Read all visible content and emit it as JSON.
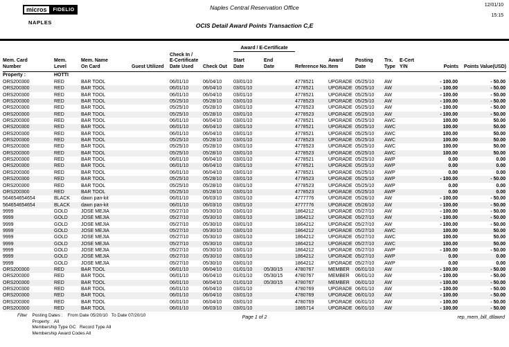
{
  "meta": {
    "print_date": "12/01/10",
    "print_time": "15:15"
  },
  "logo": {
    "micros": "micros",
    "fidelio": "FIDELIO",
    "property_name": "NAPLES"
  },
  "header": {
    "office": "Naples Central Reservation Office",
    "report_title": "OCIS Detail Award Points Transaction C,E"
  },
  "table": {
    "group_header": "Award / E-Certificate",
    "columns": [
      "Mem. Card\nNumber",
      "Mem.\nLevel",
      "Mem. Name\nOn Card",
      "Guest Utilized",
      "Check In /\nE-Certificate\nDate Used",
      "Check Out",
      "Start\nDate",
      "End\nDate",
      "Reference No.",
      "Award\nItem",
      "Posting\nDate",
      "Trx.\nType",
      "E-Cert\nY/N",
      "Points",
      "Points Value(USD)"
    ],
    "property_label": "Property :",
    "property_value": "HOTTI",
    "rows": [
      [
        "ORS200300",
        "RED",
        "BAR TOOL",
        "",
        "06/01/10",
        "06/04/10",
        "03/01/10",
        "",
        "4778521",
        "UPGRADE",
        "05/25/10",
        "AW",
        "",
        "- 100.00",
        "- 50.00"
      ],
      [
        "ORS200300",
        "RED",
        "BAR TOOL",
        "",
        "06/01/10",
        "06/04/10",
        "03/01/10",
        "",
        "4778521",
        "UPGRADE",
        "05/25/10",
        "AW",
        "",
        "- 100.00",
        "- 50.00"
      ],
      [
        "ORS200300",
        "RED",
        "BAR TOOL",
        "",
        "06/01/10",
        "06/04/10",
        "03/01/10",
        "",
        "4778521",
        "UPGRADE",
        "05/25/10",
        "AW",
        "",
        "- 100.00",
        "- 50.00"
      ],
      [
        "ORS200300",
        "RED",
        "BAR TOOL",
        "",
        "05/25/10",
        "05/28/10",
        "03/01/10",
        "",
        "4778523",
        "UPGRADE",
        "05/25/10",
        "AW",
        "",
        "- 100.00",
        "- 50.00"
      ],
      [
        "ORS200300",
        "RED",
        "BAR TOOL",
        "",
        "05/25/10",
        "05/28/10",
        "03/01/10",
        "",
        "4778523",
        "UPGRADE",
        "05/25/10",
        "AW",
        "",
        "- 100.00",
        "- 50.00"
      ],
      [
        "ORS200300",
        "RED",
        "BAR TOOL",
        "",
        "05/25/10",
        "05/28/10",
        "03/01/10",
        "",
        "4778523",
        "UPGRADE",
        "05/25/10",
        "AW",
        "",
        "- 100.00",
        "- 50.00"
      ],
      [
        "ORS200300",
        "RED",
        "BAR TOOL",
        "",
        "06/01/10",
        "06/04/10",
        "03/01/10",
        "",
        "4778521",
        "UPGRADE",
        "05/25/10",
        "AWC",
        "",
        "100.00",
        "50.00"
      ],
      [
        "ORS200300",
        "RED",
        "BAR TOOL",
        "",
        "06/01/10",
        "06/04/10",
        "03/01/10",
        "",
        "4778521",
        "UPGRADE",
        "05/25/10",
        "AWC",
        "",
        "100.00",
        "50.00"
      ],
      [
        "ORS200300",
        "RED",
        "BAR TOOL",
        "",
        "06/01/10",
        "06/04/10",
        "03/01/10",
        "",
        "4778521",
        "UPGRADE",
        "05/25/10",
        "AWC",
        "",
        "100.00",
        "50.00"
      ],
      [
        "ORS200300",
        "RED",
        "BAR TOOL",
        "",
        "05/25/10",
        "05/28/10",
        "03/01/10",
        "",
        "4778523",
        "UPGRADE",
        "05/25/10",
        "AWC",
        "",
        "100.00",
        "50.00"
      ],
      [
        "ORS200300",
        "RED",
        "BAR TOOL",
        "",
        "05/25/10",
        "05/28/10",
        "03/01/10",
        "",
        "4778523",
        "UPGRADE",
        "05/25/10",
        "AWC",
        "",
        "100.00",
        "50.00"
      ],
      [
        "ORS200300",
        "RED",
        "BAR TOOL",
        "",
        "05/25/10",
        "05/28/10",
        "03/01/10",
        "",
        "4778523",
        "UPGRADE",
        "05/25/10",
        "AWC",
        "",
        "100.00",
        "50.00"
      ],
      [
        "ORS200300",
        "RED",
        "BAR TOOL",
        "",
        "06/01/10",
        "06/04/10",
        "03/01/10",
        "",
        "4778521",
        "UPGRADE",
        "05/25/10",
        "AWP",
        "",
        "0.00",
        "0.00"
      ],
      [
        "ORS200300",
        "RED",
        "BAR TOOL",
        "",
        "06/01/10",
        "06/04/10",
        "03/01/10",
        "",
        "4778521",
        "UPGRADE",
        "05/25/10",
        "AWP",
        "",
        "0.00",
        "0.00"
      ],
      [
        "ORS200300",
        "RED",
        "BAR TOOL",
        "",
        "06/01/10",
        "06/04/10",
        "03/01/10",
        "",
        "4778521",
        "UPGRADE",
        "05/25/10",
        "AWP",
        "",
        "0.00",
        "0.00"
      ],
      [
        "ORS200300",
        "RED",
        "BAR TOOL",
        "",
        "05/25/10",
        "05/28/10",
        "03/01/10",
        "",
        "4778523",
        "UPGRADE",
        "05/25/10",
        "AWP",
        "",
        "- 100.00",
        "- 50.00"
      ],
      [
        "ORS200300",
        "RED",
        "BAR TOOL",
        "",
        "05/25/10",
        "05/28/10",
        "03/01/10",
        "",
        "4778523",
        "UPGRADE",
        "05/25/10",
        "AWP",
        "",
        "0.00",
        "0.00"
      ],
      [
        "ORS200300",
        "RED",
        "BAR TOOL",
        "",
        "05/25/10",
        "05/28/10",
        "03/01/10",
        "",
        "4778523",
        "UPGRADE",
        "05/25/10",
        "AWP",
        "",
        "0.00",
        "0.00"
      ],
      [
        "564654654654",
        "BLACK",
        "dawn pan-kit",
        "",
        "06/01/10",
        "06/03/10",
        "03/01/10",
        "",
        "4777776",
        "UPGRADE",
        "05/26/10",
        "AW",
        "",
        "- 100.00",
        "- 50.00"
      ],
      [
        "564654654654",
        "BLACK",
        "dawn pan-kit",
        "",
        "06/01/10",
        "06/03/10",
        "03/01/10",
        "",
        "4777776",
        "UPGRADE",
        "05/26/10",
        "AW",
        "",
        "- 100.00",
        "- 50.00"
      ],
      [
        "9999",
        "GOLD",
        "JOSE MEJIA",
        "",
        "05/27/10",
        "05/30/10",
        "03/01/10",
        "",
        "1864212",
        "UPGRADE",
        "05/27/10",
        "AW",
        "",
        "- 100.00",
        "- 50.00"
      ],
      [
        "9999",
        "GOLD",
        "JOSE MEJIA",
        "",
        "05/27/10",
        "05/30/10",
        "03/01/10",
        "",
        "1864212",
        "UPGRADE",
        "05/27/10",
        "AW",
        "",
        "- 100.00",
        "- 50.00"
      ],
      [
        "9999",
        "GOLD",
        "JOSE MEJIA",
        "",
        "05/27/10",
        "05/30/10",
        "03/01/10",
        "",
        "1864212",
        "UPGRADE",
        "05/27/10",
        "AW",
        "",
        "- 100.00",
        "- 50.00"
      ],
      [
        "9999",
        "GOLD",
        "JOSE MEJIA",
        "",
        "05/27/10",
        "05/30/10",
        "03/01/10",
        "",
        "1864212",
        "UPGRADE",
        "05/27/10",
        "AWC",
        "",
        "100.00",
        "50.00"
      ],
      [
        "9999",
        "GOLD",
        "JOSE MEJIA",
        "",
        "05/27/10",
        "05/30/10",
        "03/01/10",
        "",
        "1864212",
        "UPGRADE",
        "05/27/10",
        "AWC",
        "",
        "100.00",
        "50.00"
      ],
      [
        "9999",
        "GOLD",
        "JOSE MEJIA",
        "",
        "05/27/10",
        "05/30/10",
        "03/01/10",
        "",
        "1864212",
        "UPGRADE",
        "05/27/10",
        "AWC",
        "",
        "100.00",
        "50.00"
      ],
      [
        "9999",
        "GOLD",
        "JOSE MEJIA",
        "",
        "05/27/10",
        "05/30/10",
        "03/01/10",
        "",
        "1864212",
        "UPGRADE",
        "05/27/10",
        "AWP",
        "",
        "- 100.00",
        "- 50.00"
      ],
      [
        "9999",
        "GOLD",
        "JOSE MEJIA",
        "",
        "05/27/10",
        "05/30/10",
        "03/01/10",
        "",
        "1864212",
        "UPGRADE",
        "05/27/10",
        "AWP",
        "",
        "0.00",
        "0.00"
      ],
      [
        "9999",
        "GOLD",
        "JOSE MEJIA",
        "",
        "05/27/10",
        "05/30/10",
        "03/01/10",
        "",
        "1864212",
        "UPGRADE",
        "05/27/10",
        "AWP",
        "",
        "0.00",
        "0.00"
      ],
      [
        "ORS200300",
        "RED",
        "BAR TOOL",
        "",
        "06/01/10",
        "06/04/10",
        "01/01/10",
        "05/30/15",
        "4780767",
        "MEMBER",
        "06/01/10",
        "AW",
        "",
        "- 100.00",
        "- 50.00"
      ],
      [
        "ORS200300",
        "RED",
        "BAR TOOL",
        "",
        "06/01/10",
        "06/04/10",
        "01/01/10",
        "05/30/15",
        "4780767",
        "MEMBER",
        "06/01/10",
        "AW",
        "",
        "- 100.00",
        "- 50.00"
      ],
      [
        "ORS200300",
        "RED",
        "BAR TOOL",
        "",
        "06/01/10",
        "06/04/10",
        "01/01/10",
        "05/30/15",
        "4780767",
        "MEMBER",
        "06/01/10",
        "AW",
        "",
        "- 100.00",
        "- 50.00"
      ],
      [
        "ORS200300",
        "RED",
        "BAR TOOL",
        "",
        "06/01/10",
        "06/04/10",
        "03/01/10",
        "",
        "4780769",
        "UPGRADE",
        "06/01/10",
        "AW",
        "",
        "- 100.00",
        "- 50.00"
      ],
      [
        "ORS200300",
        "RED",
        "BAR TOOL",
        "",
        "06/01/10",
        "06/04/10",
        "03/01/10",
        "",
        "4780769",
        "UPGRADE",
        "06/01/10",
        "AW",
        "",
        "- 100.00",
        "- 50.00"
      ],
      [
        "ORS200300",
        "RED",
        "BAR TOOL",
        "",
        "06/01/10",
        "06/04/10",
        "03/01/10",
        "",
        "4780769",
        "UPGRADE",
        "06/01/10",
        "AW",
        "",
        "- 100.00",
        "- 50.00"
      ],
      [
        "ORS200300",
        "RED",
        "BAR TOOL",
        "",
        "06/01/10",
        "06/03/10",
        "03/01/10",
        "",
        "1865714",
        "UPGRADE",
        "06/01/10",
        "AW",
        "",
        "- 100.00",
        "- 50.00"
      ]
    ]
  },
  "footer": {
    "filter_label": "Filter",
    "filter_lines": [
      "Posting Dates :    From Date 05/20/10   To Date 07/20/10",
      "Property:   All",
      "Membership Type GC   Record Type All",
      "Membership Award Codes All"
    ],
    "page": "Page 1 of 2",
    "report_id": "rep_mem_bill_dtlawrd"
  }
}
